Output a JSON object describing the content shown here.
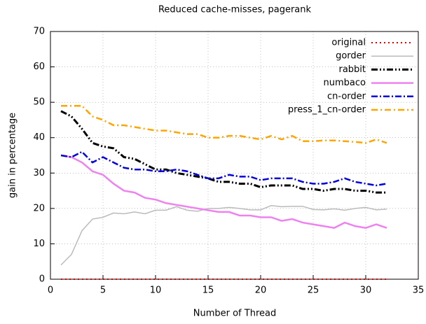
{
  "chart_data": {
    "type": "line",
    "title": "Reduced cache-misses, pagerank",
    "xlabel": "Number of Thread",
    "ylabel": "gain in percentage",
    "x": [
      1,
      2,
      3,
      4,
      5,
      6,
      7,
      8,
      9,
      10,
      11,
      12,
      13,
      14,
      15,
      16,
      17,
      18,
      19,
      20,
      21,
      22,
      23,
      24,
      25,
      26,
      27,
      28,
      29,
      30,
      31,
      32
    ],
    "xlim": [
      0,
      35
    ],
    "xticks": [
      0,
      5,
      10,
      15,
      20,
      25,
      30,
      35
    ],
    "ylim": [
      0,
      70
    ],
    "yticks": [
      0,
      10,
      20,
      30,
      40,
      50,
      60,
      70
    ],
    "grid": true,
    "legend": "top-right",
    "series": [
      {
        "name": "original",
        "color": "#e00000",
        "values": [
          0,
          0,
          0,
          0,
          0,
          0,
          0,
          0,
          0,
          0,
          0,
          0,
          0,
          0,
          0,
          0,
          0,
          0,
          0,
          0,
          0,
          0,
          0,
          0,
          0,
          0,
          0,
          0,
          0,
          0,
          0,
          0
        ]
      },
      {
        "name": "gorder",
        "color": "#bbbbbb",
        "values": [
          4,
          7,
          13.7,
          17,
          17.5,
          18.7,
          18.5,
          19,
          18.5,
          19.5,
          19.5,
          20.5,
          19.5,
          19.2,
          20,
          20,
          20.3,
          20,
          19.6,
          19.6,
          20.8,
          20.5,
          20.6,
          20.6,
          19.7,
          19.6,
          19.9,
          19.5,
          20,
          20.3,
          19.6,
          19.8
        ]
      },
      {
        "name": "rabbit",
        "color": "#000000",
        "values": [
          47.5,
          46,
          42.5,
          38.5,
          37.5,
          37,
          34.5,
          34,
          32.5,
          31,
          31,
          30,
          29.5,
          29,
          28.5,
          27.5,
          27.5,
          27,
          27,
          26,
          26.5,
          26.5,
          26.5,
          25.5,
          25.5,
          25,
          25.5,
          25.5,
          25,
          25,
          24.5,
          24.5
        ]
      },
      {
        "name": "numbaco",
        "color": "#ee82ee",
        "values": [
          35,
          34.5,
          33,
          30.5,
          29.5,
          27,
          25,
          24.5,
          23,
          22.5,
          21.5,
          21,
          20.5,
          20,
          19.5,
          19,
          19,
          18,
          18,
          17.5,
          17.5,
          16.5,
          17,
          16,
          15.5,
          15,
          14.5,
          16,
          15,
          14.5,
          15.5,
          14.5
        ]
      },
      {
        "name": "cn-order",
        "color": "#0000dd",
        "values": [
          35,
          34.5,
          36,
          33,
          34.5,
          33,
          31.5,
          31,
          31,
          30.5,
          30.5,
          31,
          30.5,
          29.5,
          28.5,
          28.5,
          29.5,
          29,
          29,
          28,
          28.5,
          28.5,
          28.5,
          27.5,
          27,
          27,
          27.5,
          28.5,
          27.5,
          27,
          26.5,
          27
        ]
      },
      {
        "name": "press_1_cn-order",
        "color": "#ffa500",
        "values": [
          49,
          49,
          49,
          46,
          45,
          43.5,
          43.5,
          43,
          42.5,
          42,
          42,
          41.5,
          41,
          41,
          40,
          40,
          40.5,
          40.5,
          40,
          39.5,
          40.5,
          39.5,
          40.5,
          39,
          39,
          39.2,
          39.2,
          39,
          38.8,
          38.5,
          39.5,
          38.5
        ]
      }
    ]
  }
}
